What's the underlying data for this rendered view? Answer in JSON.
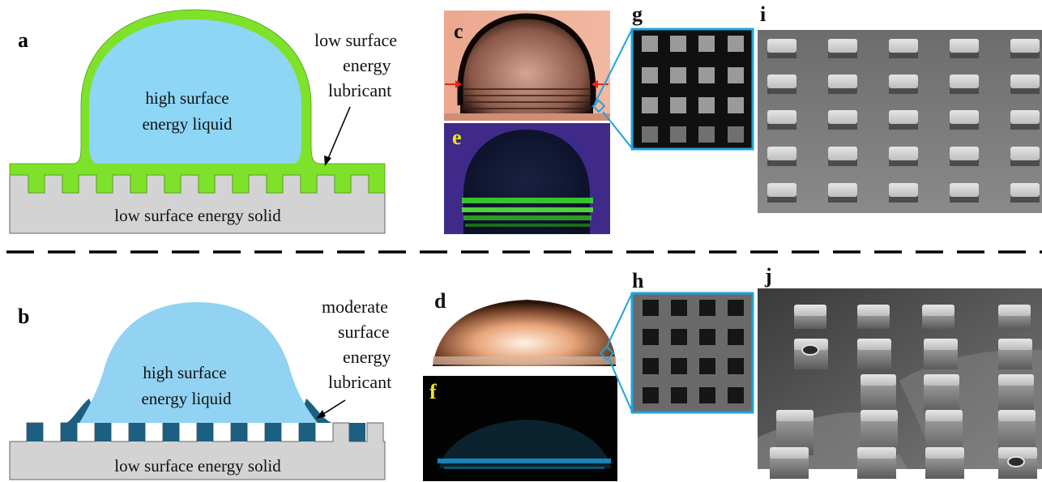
{
  "panels": {
    "a": {
      "letter": "a",
      "drop_label": [
        "high surface",
        "energy liquid"
      ],
      "lubricant_label": [
        "low surface",
        "energy",
        "lubricant"
      ],
      "solid_label": "low surface energy solid"
    },
    "b": {
      "letter": "b",
      "drop_label": [
        "high surface",
        "energy liquid"
      ],
      "lubricant_label": [
        "moderate",
        "surface",
        "energy",
        "lubricant"
      ],
      "solid_label": "low surface energy solid"
    },
    "c": {
      "letter": "c"
    },
    "d": {
      "letter": "d"
    },
    "e": {
      "letter": "e"
    },
    "f": {
      "letter": "f"
    },
    "g": {
      "letter": "g"
    },
    "h": {
      "letter": "h"
    },
    "i": {
      "letter": "i"
    },
    "j": {
      "letter": "j"
    }
  },
  "colors": {
    "drop": "#8dd6f5",
    "drop_b": "#92d2f2",
    "lubricant_a": "#7fe22a",
    "lubricant_b": "#1c5f80",
    "solid": "#d3d3d3",
    "inset_frame": "#1fa3dd",
    "arrow_red": "#e8231d",
    "letter_yellow": "#f2e51c",
    "sem_bg": "#7d7d7d"
  }
}
